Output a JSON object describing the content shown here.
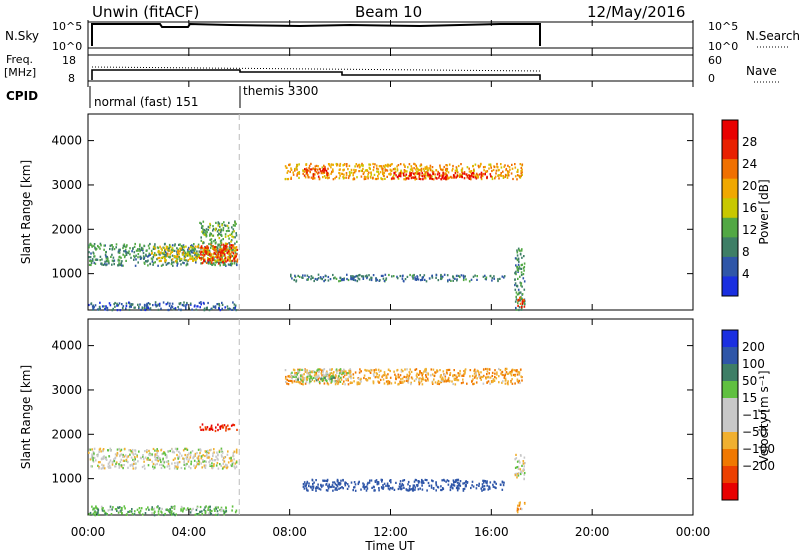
{
  "header": {
    "station": "Unwin (fitACF)",
    "beam": "Beam 10",
    "date": "12/May/2016"
  },
  "nsky": {
    "label": "N.Sky",
    "ticks": [
      "10^5",
      "10^0"
    ],
    "right_label": "N.Search",
    "right_ticks": [
      "10^5",
      "10^0"
    ]
  },
  "freq": {
    "label_line1": "Freq.",
    "label_line2": "[MHz]",
    "ticks": [
      "18",
      "8"
    ],
    "right_label": "Nave",
    "right_ticks": [
      "60",
      "0"
    ]
  },
  "cpid": {
    "label": "CPID",
    "segments": [
      {
        "label": "normal (fast) 151",
        "start": 0,
        "end": 6.0
      },
      {
        "label": "themis 3300",
        "start": 6.0,
        "end": 18.0
      }
    ]
  },
  "colors": {
    "power_scale": [
      "#1a2fe0",
      "#2f56a8",
      "#3e7e66",
      "#52a844",
      "#c8c800",
      "#f0a800",
      "#f07000",
      "#e82000",
      "#e80000"
    ],
    "velocity_scale": [
      "#e80000",
      "#ec4000",
      "#f07800",
      "#f0b030",
      "#c8c8c8",
      "#c8c8c8",
      "#60c040",
      "#3e7e66",
      "#2f56a8",
      "#1a2fe0"
    ]
  },
  "chart_data": [
    {
      "type": "heatmap",
      "name": "power",
      "title": "",
      "ylabel": "Slant Range [km]",
      "xlabel": "",
      "xlim": [
        0,
        24
      ],
      "ylim": [
        180,
        4600
      ],
      "yticks": [
        1000,
        2000,
        3000,
        4000
      ],
      "colorbar": {
        "label": "Power [dB]",
        "range": [
          0,
          32
        ],
        "ticks": [
          4,
          8,
          12,
          16,
          20,
          24,
          28
        ]
      },
      "regions": [
        {
          "t": [
            0.0,
            5.9
          ],
          "r": [
            1200,
            1700
          ],
          "v": 10
        },
        {
          "t": [
            2.5,
            5.9
          ],
          "r": [
            1300,
            1650
          ],
          "v": 18
        },
        {
          "t": [
            4.4,
            5.9
          ],
          "r": [
            1250,
            1700
          ],
          "v": 26
        },
        {
          "t": [
            4.4,
            5.9
          ],
          "r": [
            1700,
            2200
          ],
          "v": 12
        },
        {
          "t": [
            0.0,
            5.9
          ],
          "r": [
            200,
            380
          ],
          "v": 6
        },
        {
          "t": [
            7.8,
            17.2
          ],
          "r": [
            3150,
            3500
          ],
          "v": 20
        },
        {
          "t": [
            12.0,
            16.0
          ],
          "r": [
            3150,
            3300
          ],
          "v": 29
        },
        {
          "t": [
            8.5,
            9.5
          ],
          "r": [
            3200,
            3400
          ],
          "v": 27
        },
        {
          "t": [
            16.9,
            17.3
          ],
          "r": [
            200,
            1600
          ],
          "v": 10
        },
        {
          "t": [
            17.0,
            17.3
          ],
          "r": [
            250,
            500
          ],
          "v": 27
        },
        {
          "t": [
            8.0,
            16.5
          ],
          "r": [
            850,
            1000
          ],
          "v": 8
        }
      ]
    },
    {
      "type": "heatmap",
      "name": "velocity",
      "title": "",
      "ylabel": "Slant Range [km]",
      "xlabel": "Time UT",
      "xlim": [
        0,
        24
      ],
      "ylim": [
        180,
        4600
      ],
      "yticks": [
        1000,
        2000,
        3000,
        4000
      ],
      "xticks": [
        "00:00",
        "04:00",
        "08:00",
        "12:00",
        "16:00",
        "20:00",
        "00:00"
      ],
      "colorbar": {
        "label": "Velocity [m s⁻¹]",
        "ticks": [
          "200",
          "100",
          "50",
          "15",
          "−15",
          "−50",
          "−100",
          "−200"
        ]
      },
      "regions": [
        {
          "t": [
            0.0,
            5.9
          ],
          "r": [
            1250,
            1700
          ],
          "v": 0
        },
        {
          "t": [
            4.4,
            5.9
          ],
          "r": [
            2100,
            2250
          ],
          "v": -200
        },
        {
          "t": [
            0.0,
            5.9
          ],
          "r": [
            200,
            400
          ],
          "v": 40
        },
        {
          "t": [
            7.8,
            17.2
          ],
          "r": [
            3150,
            3500
          ],
          "v": -40
        },
        {
          "t": [
            8.0,
            10.5
          ],
          "r": [
            3250,
            3500
          ],
          "v": 0
        },
        {
          "t": [
            8.2,
            10.0
          ],
          "r": [
            3200,
            3350
          ],
          "v": 30
        },
        {
          "t": [
            16.9,
            17.3
          ],
          "r": [
            1000,
            1600
          ],
          "v": 0
        },
        {
          "t": [
            17.0,
            17.3
          ],
          "r": [
            250,
            500
          ],
          "v": -40
        },
        {
          "t": [
            8.5,
            16.5
          ],
          "r": [
            750,
            1000
          ],
          "v": 150
        }
      ]
    }
  ]
}
